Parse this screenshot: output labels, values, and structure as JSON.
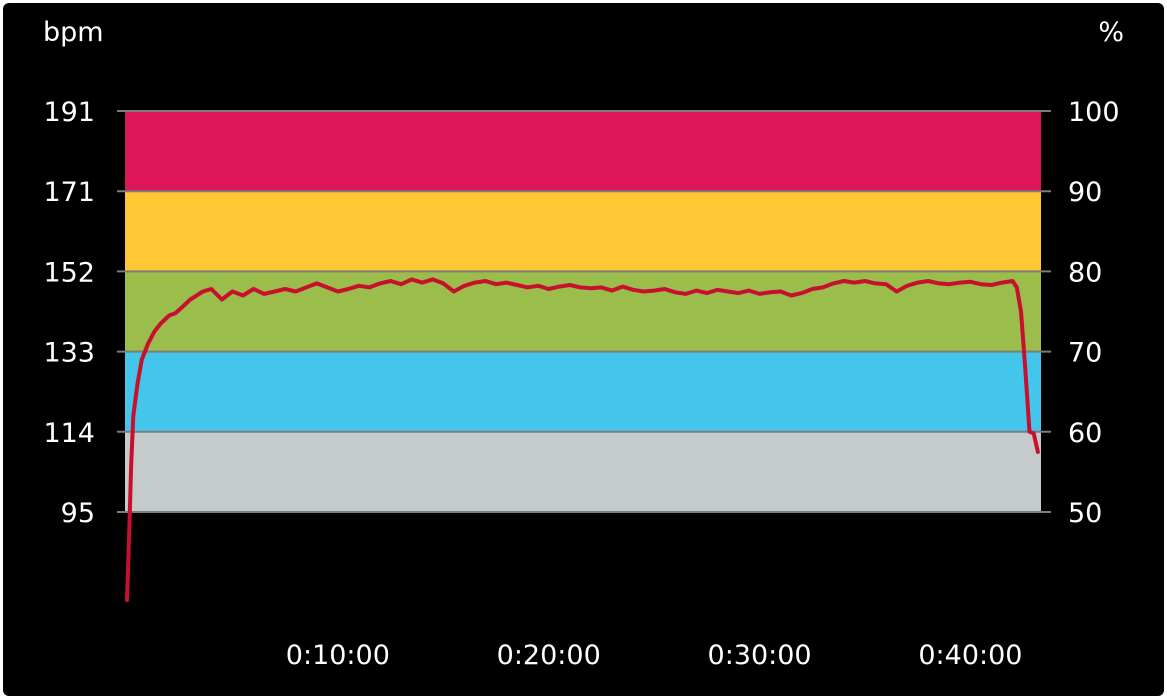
{
  "chart_data": {
    "type": "line",
    "left_axis_label": "bpm",
    "right_axis_label": "%",
    "left_ticks": [
      "191",
      "171",
      "152",
      "133",
      "114",
      "95"
    ],
    "right_ticks": [
      "100",
      "90",
      "80",
      "70",
      "60",
      "50"
    ],
    "x_tick_labels": [
      "0:10:00",
      "0:20:00",
      "0:30:00",
      "0:40:00"
    ],
    "x_tick_minutes": [
      10,
      20,
      30,
      40
    ],
    "x_range_minutes": [
      0,
      43.3
    ],
    "y_range_percent": [
      38.5,
      100
    ],
    "zones": [
      {
        "from_percent": 50,
        "to_percent": 60,
        "color": "#c5cbcb"
      },
      {
        "from_percent": 60,
        "to_percent": 70,
        "color": "#44c6ec"
      },
      {
        "from_percent": 70,
        "to_percent": 80,
        "color": "#9bbd4c"
      },
      {
        "from_percent": 80,
        "to_percent": 90,
        "color": "#fec733"
      },
      {
        "from_percent": 90,
        "to_percent": 100,
        "color": "#dd1559"
      }
    ],
    "grid_color": "#7d7d7d",
    "line_color": "#c8102e",
    "series": [
      {
        "x": [
          0,
          0.1,
          0.2,
          0.3,
          0.5,
          0.7,
          1.0,
          1.3,
          1.6,
          2.0,
          2.3,
          2.6,
          3.0,
          3.3,
          3.6,
          4.0,
          4.5,
          5.0,
          5.5,
          6.0,
          6.5,
          7.0,
          7.5,
          8.0,
          8.5,
          9.0,
          9.5,
          10.0,
          10.5,
          11.0,
          11.5,
          12.0,
          12.5,
          13.0,
          13.5,
          14.0,
          14.5,
          15.0,
          15.5,
          16.0,
          16.5,
          17.0,
          17.5,
          18.0,
          18.5,
          19.0,
          19.5,
          20.0,
          20.5,
          21.0,
          21.5,
          22.0,
          22.5,
          23.0,
          23.5,
          24.0,
          24.5,
          25.0,
          25.5,
          26.0,
          26.5,
          27.0,
          27.5,
          28.0,
          28.5,
          29.0,
          29.5,
          30.0,
          30.5,
          31.0,
          31.5,
          32.0,
          32.5,
          33.0,
          33.5,
          34.0,
          34.5,
          35.0,
          35.5,
          36.0,
          36.5,
          37.0,
          37.5,
          38.0,
          38.5,
          39.0,
          39.5,
          40.0,
          40.5,
          41.0,
          41.5,
          42.0,
          42.2,
          42.4,
          42.6,
          42.8,
          43.0,
          43.2
        ],
        "y": [
          39,
          47,
          56,
          62,
          66,
          69,
          71,
          72.5,
          73.5,
          74.5,
          74.8,
          75.5,
          76.5,
          77,
          77.5,
          77.8,
          76.5,
          77.5,
          77,
          77.8,
          77.2,
          77.5,
          77.8,
          77.5,
          78,
          78.5,
          78,
          77.5,
          77.8,
          78.2,
          78,
          78.5,
          78.8,
          78.4,
          79,
          78.6,
          79,
          78.5,
          77.5,
          78.2,
          78.6,
          78.8,
          78.4,
          78.6,
          78.3,
          78,
          78.2,
          77.8,
          78.1,
          78.3,
          78,
          77.9,
          78,
          77.6,
          78.1,
          77.7,
          77.5,
          77.6,
          77.8,
          77.4,
          77.2,
          77.6,
          77.3,
          77.7,
          77.5,
          77.3,
          77.6,
          77.2,
          77.4,
          77.5,
          77,
          77.3,
          77.8,
          78,
          78.5,
          78.8,
          78.6,
          78.8,
          78.5,
          78.4,
          77.5,
          78.2,
          78.6,
          78.8,
          78.5,
          78.4,
          78.6,
          78.7,
          78.4,
          78.3,
          78.6,
          78.8,
          78,
          75,
          68,
          60,
          59.8,
          57.5
        ]
      }
    ]
  }
}
